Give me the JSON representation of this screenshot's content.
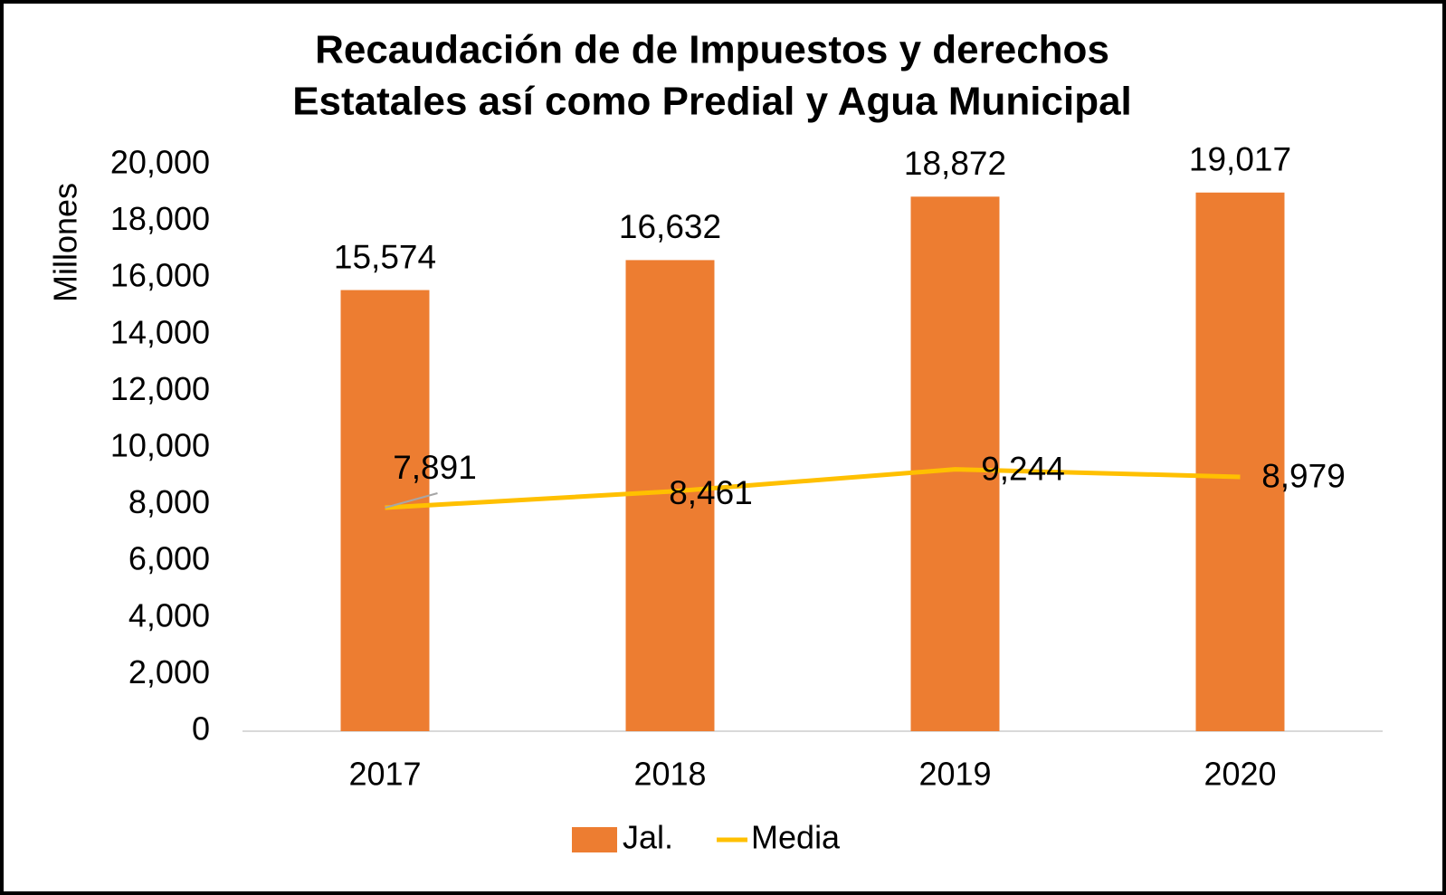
{
  "chart_data": {
    "type": "bar",
    "title": [
      "Recaudación de de Impuestos y derechos",
      "Estatales así como Predial y Agua Municipal"
    ],
    "y_axis_label": "Millones",
    "categories": [
      "2017",
      "2018",
      "2019",
      "2020"
    ],
    "series": [
      {
        "name": "Jal.",
        "type": "bar",
        "color": "#ED7D31",
        "values": [
          15574,
          16632,
          18872,
          19017
        ],
        "value_labels": [
          "15,574",
          "16,632",
          "18,872",
          "19,017"
        ]
      },
      {
        "name": "Media",
        "type": "line",
        "color": "#FFC000",
        "values": [
          7891,
          8461,
          9244,
          8979
        ],
        "value_labels": [
          "7,891",
          "8,461",
          "9,244",
          "8,979"
        ]
      }
    ],
    "ylim": [
      0,
      20000
    ],
    "yticks": [
      0,
      {
        "value": 2000,
        "label": "2,000"
      },
      {
        "value": 4000,
        "label": "4,000"
      },
      {
        "value": 6000,
        "label": "6,000"
      },
      {
        "value": 8000,
        "label": "8,000"
      },
      {
        "value": 10000,
        "label": "10,000"
      },
      {
        "value": 12000,
        "label": "12,000"
      },
      {
        "value": 14000,
        "label": "14,000"
      },
      {
        "value": 16000,
        "label": "16,000"
      },
      {
        "value": 18000,
        "label": "18,000"
      },
      {
        "value": 20000,
        "label": "20,000"
      }
    ],
    "grid": false,
    "legend": "bottom"
  }
}
